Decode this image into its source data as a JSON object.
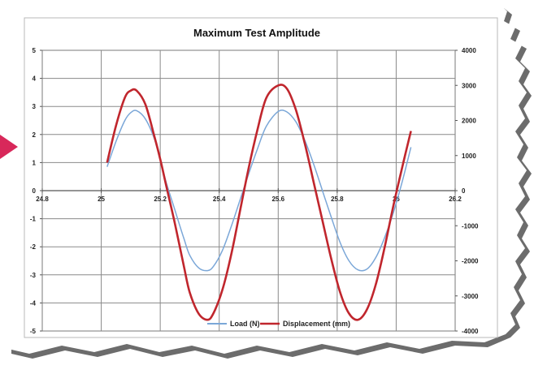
{
  "chart_data": {
    "type": "line",
    "title": "Maximum Test Amplitude",
    "xlabel": "",
    "ylabel": "",
    "y2label": "",
    "xlim": [
      24.8,
      26.2
    ],
    "ylim": [
      -5,
      5
    ],
    "y2lim": [
      -4000,
      4000
    ],
    "x_ticks": [
      "24.8",
      "25",
      "25.2",
      "25.4",
      "25.6",
      "25.8",
      "26",
      "26.2"
    ],
    "y_ticks": [
      "5",
      "4",
      "3",
      "2",
      "1",
      "0",
      "-1",
      "-2",
      "-3",
      "-4",
      "-5"
    ],
    "y2_ticks": [
      "4000",
      "3000",
      "2000",
      "1000",
      "0",
      "-1000",
      "-2000",
      "-3000",
      "-4000"
    ],
    "grid": true,
    "legend_position": "bottom",
    "x": [
      25.02,
      25.05,
      25.08,
      25.1,
      25.12,
      25.15,
      25.18,
      25.2,
      25.22,
      25.25,
      25.28,
      25.3,
      25.33,
      25.36,
      25.38,
      25.41,
      25.44,
      25.47,
      25.5,
      25.53,
      25.56,
      25.6,
      25.63,
      25.66,
      25.69,
      25.72,
      25.75,
      25.78,
      25.81,
      25.84,
      25.87,
      25.9,
      25.93,
      25.96,
      25.99,
      26.02,
      26.05
    ],
    "series": [
      {
        "name": "Load (N)",
        "axis": "left",
        "color": "#7ba7d8",
        "values": [
          0.85,
          1.75,
          2.5,
          2.78,
          2.85,
          2.55,
          1.85,
          1.1,
          0.3,
          -0.7,
          -1.7,
          -2.3,
          -2.75,
          -2.85,
          -2.7,
          -2.15,
          -1.3,
          -0.35,
          0.6,
          1.5,
          2.3,
          2.82,
          2.8,
          2.45,
          1.8,
          0.95,
          0.0,
          -0.95,
          -1.85,
          -2.5,
          -2.82,
          -2.8,
          -2.4,
          -1.7,
          -0.8,
          0.3,
          1.55
        ]
      },
      {
        "name": "Displacement (mm)",
        "axis": "right",
        "color": "#c0262d",
        "values": [
          800,
          1850,
          2650,
          2850,
          2850,
          2450,
          1550,
          900,
          150,
          -950,
          -2150,
          -2900,
          -3500,
          -3680,
          -3500,
          -2850,
          -1850,
          -600,
          650,
          1750,
          2650,
          3000,
          2900,
          2300,
          1350,
          250,
          -850,
          -1950,
          -2900,
          -3500,
          -3680,
          -3400,
          -2700,
          -1650,
          -450,
          650,
          1700
        ]
      }
    ]
  }
}
